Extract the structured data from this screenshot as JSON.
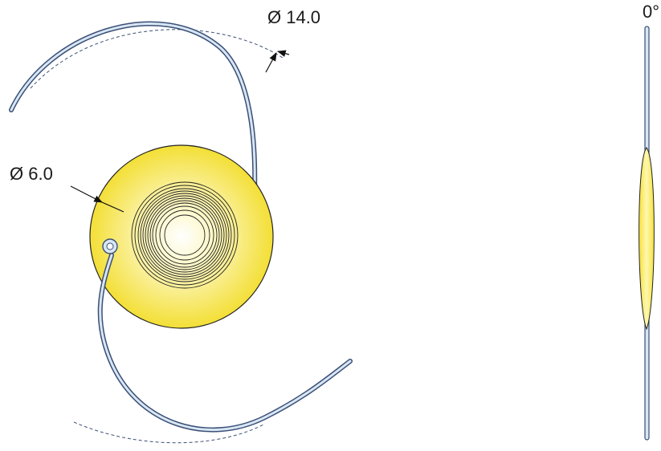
{
  "labels": {
    "haptic_diameter": "Ø 14.0",
    "optic_diameter": "Ø 6.0",
    "angle": "0°"
  },
  "colors": {
    "optic_fill_center": "#ffffff",
    "optic_fill_edge": "#f5e23a",
    "haptic_fill": "#d8e6f5",
    "haptic_stroke": "#3a4f75",
    "outline": "#222222",
    "dashed": "#3a4f75"
  },
  "icons": {
    "arrow": "arrow-icon"
  }
}
